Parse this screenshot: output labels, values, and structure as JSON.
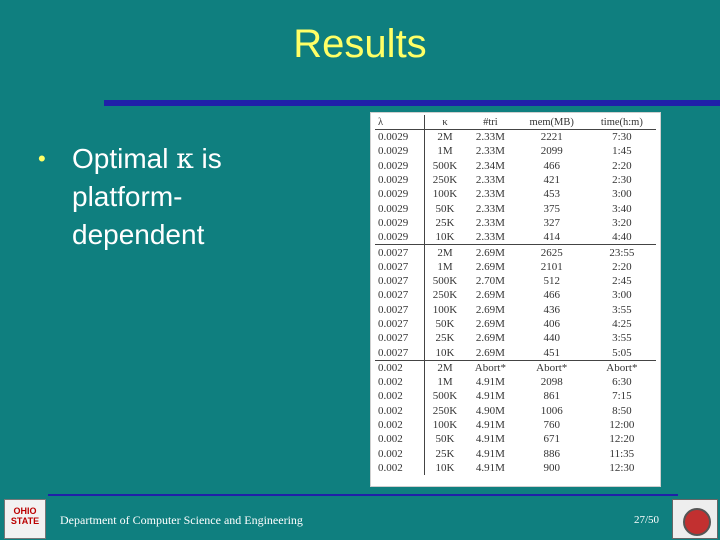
{
  "slide": {
    "title": "Results",
    "bullet_prefix": "Optimal ",
    "bullet_symbol": "κ",
    "bullet_suffix": " is platform-dependent"
  },
  "table": {
    "headers": [
      "λ",
      "κ",
      "#tri",
      "mem(MB)",
      "time(h:m)"
    ],
    "rows": [
      [
        "0.0029",
        "2M",
        "2.33M",
        "2221",
        "7:30"
      ],
      [
        "0.0029",
        "1M",
        "2.33M",
        "2099",
        "1:45"
      ],
      [
        "0.0029",
        "500K",
        "2.34M",
        "466",
        "2:20"
      ],
      [
        "0.0029",
        "250K",
        "2.33M",
        "421",
        "2:30"
      ],
      [
        "0.0029",
        "100K",
        "2.33M",
        "453",
        "3:00"
      ],
      [
        "0.0029",
        "50K",
        "2.33M",
        "375",
        "3:40"
      ],
      [
        "0.0029",
        "25K",
        "2.33M",
        "327",
        "3:20"
      ],
      [
        "0.0029",
        "10K",
        "2.33M",
        "414",
        "4:40"
      ],
      [
        "0.0027",
        "2M",
        "2.69M",
        "2625",
        "23:55"
      ],
      [
        "0.0027",
        "1M",
        "2.69M",
        "2101",
        "2:20"
      ],
      [
        "0.0027",
        "500K",
        "2.70M",
        "512",
        "2:45"
      ],
      [
        "0.0027",
        "250K",
        "2.69M",
        "466",
        "3:00"
      ],
      [
        "0.0027",
        "100K",
        "2.69M",
        "436",
        "3:55"
      ],
      [
        "0.0027",
        "50K",
        "2.69M",
        "406",
        "4:25"
      ],
      [
        "0.0027",
        "25K",
        "2.69M",
        "440",
        "3:55"
      ],
      [
        "0.0027",
        "10K",
        "2.69M",
        "451",
        "5:05"
      ],
      [
        "0.002",
        "2M",
        "Abort*",
        "Abort*",
        "Abort*"
      ],
      [
        "0.002",
        "1M",
        "4.91M",
        "2098",
        "6:30"
      ],
      [
        "0.002",
        "500K",
        "4.91M",
        "861",
        "7:15"
      ],
      [
        "0.002",
        "250K",
        "4.90M",
        "1006",
        "8:50"
      ],
      [
        "0.002",
        "100K",
        "4.91M",
        "760",
        "12:00"
      ],
      [
        "0.002",
        "50K",
        "4.91M",
        "671",
        "12:20"
      ],
      [
        "0.002",
        "25K",
        "4.91M",
        "886",
        "11:35"
      ],
      [
        "0.002",
        "10K",
        "4.91M",
        "900",
        "12:30"
      ]
    ]
  },
  "footer": {
    "department": "Department of Computer Science and Engineering",
    "page": "27/50",
    "logo_text": "OHIO STATE"
  }
}
